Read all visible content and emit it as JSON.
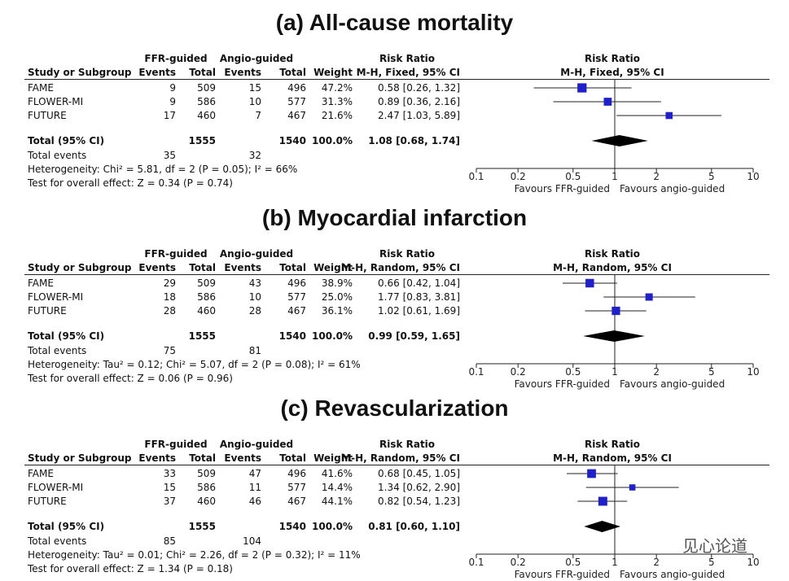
{
  "watermark": "见心论道",
  "axis": {
    "ticks": [
      0.1,
      0.2,
      0.5,
      1,
      2,
      5,
      10
    ],
    "tick_labels": [
      "0.1",
      "0.2",
      "0.5",
      "1",
      "2",
      "5",
      "10"
    ],
    "scale": "log",
    "xlim": [
      0.1,
      10
    ]
  },
  "header": {
    "study": "Study or Subgroup",
    "group1": "FFR-guided",
    "group2": "Angio-guided",
    "events": "Events",
    "total": "Total",
    "weight": "Weight",
    "rr": "Risk Ratio",
    "total_events": "Total events",
    "favours_left": "Favours FFR-guided",
    "favours_right": "Favours angio-guided"
  },
  "panels": [
    {
      "title": "(a) All-cause mortality",
      "method": "M-H, Fixed, 95% CI",
      "studies": [
        {
          "name": "FAME",
          "e1": "9",
          "n1": "509",
          "e2": "15",
          "n2": "496",
          "weight": "47.2%",
          "rr_text": "0.58 [0.26, 1.32]"
        },
        {
          "name": "FLOWER-MI",
          "e1": "9",
          "n1": "586",
          "e2": "10",
          "n2": "577",
          "weight": "31.3%",
          "rr_text": "0.89 [0.36, 2.16]"
        },
        {
          "name": "FUTURE",
          "e1": "17",
          "n1": "460",
          "e2": "7",
          "n2": "467",
          "weight": "21.6%",
          "rr_text": "2.47 [1.03, 5.89]"
        }
      ],
      "total": {
        "label": "Total (95% CI)",
        "n1": "1555",
        "n2": "1540",
        "weight": "100.0%",
        "rr_text": "1.08 [0.68, 1.74]"
      },
      "total_events": {
        "e1": "35",
        "e2": "32"
      },
      "heterogeneity": "Heterogeneity: Chi² = 5.81, df = 2 (P = 0.05); I² = 66%",
      "overall": "Test for overall effect: Z = 0.34 (P = 0.74)"
    },
    {
      "title": "(b) Myocardial infarction",
      "method": "M-H, Random, 95% CI",
      "studies": [
        {
          "name": "FAME",
          "e1": "29",
          "n1": "509",
          "e2": "43",
          "n2": "496",
          "weight": "38.9%",
          "rr_text": "0.66 [0.42, 1.04]"
        },
        {
          "name": "FLOWER-MI",
          "e1": "18",
          "n1": "586",
          "e2": "10",
          "n2": "577",
          "weight": "25.0%",
          "rr_text": "1.77 [0.83, 3.81]"
        },
        {
          "name": "FUTURE",
          "e1": "28",
          "n1": "460",
          "e2": "28",
          "n2": "467",
          "weight": "36.1%",
          "rr_text": "1.02 [0.61, 1.69]"
        }
      ],
      "total": {
        "label": "Total (95% CI)",
        "n1": "1555",
        "n2": "1540",
        "weight": "100.0%",
        "rr_text": "0.99 [0.59, 1.65]"
      },
      "total_events": {
        "e1": "75",
        "e2": "81"
      },
      "heterogeneity": "Heterogeneity: Tau² = 0.12; Chi² = 5.07, df = 2 (P = 0.08); I² = 61%",
      "overall": "Test for overall effect: Z = 0.06 (P = 0.96)"
    },
    {
      "title": "(c) Revascularization",
      "method": "M-H, Random, 95% CI",
      "studies": [
        {
          "name": "FAME",
          "e1": "33",
          "n1": "509",
          "e2": "47",
          "n2": "496",
          "weight": "41.6%",
          "rr_text": "0.68 [0.45, 1.05]"
        },
        {
          "name": "FLOWER-MI",
          "e1": "15",
          "n1": "586",
          "e2": "11",
          "n2": "577",
          "weight": "14.4%",
          "rr_text": "1.34 [0.62, 2.90]"
        },
        {
          "name": "FUTURE",
          "e1": "37",
          "n1": "460",
          "e2": "46",
          "n2": "467",
          "weight": "44.1%",
          "rr_text": "0.82 [0.54, 1.23]"
        }
      ],
      "total": {
        "label": "Total (95% CI)",
        "n1": "1555",
        "n2": "1540",
        "weight": "100.0%",
        "rr_text": "0.81 [0.60, 1.10]"
      },
      "total_events": {
        "e1": "85",
        "e2": "104"
      },
      "heterogeneity": "Heterogeneity: Tau² = 0.01; Chi² = 2.26, df = 2 (P = 0.32); I² = 11%",
      "overall": "Test for overall effect: Z = 1.34 (P = 0.18)"
    }
  ],
  "chart_data": [
    {
      "type": "forest",
      "title": "(a) All-cause mortality",
      "xlabel_left": "Favours FFR-guided",
      "xlabel_right": "Favours angio-guided",
      "xscale": "log",
      "xlim": [
        0.1,
        10
      ],
      "series": [
        {
          "name": "FAME",
          "rr": 0.58,
          "lo": 0.26,
          "hi": 1.32,
          "weight": 47.2
        },
        {
          "name": "FLOWER-MI",
          "rr": 0.89,
          "lo": 0.36,
          "hi": 2.16,
          "weight": 31.3
        },
        {
          "name": "FUTURE",
          "rr": 2.47,
          "lo": 1.03,
          "hi": 5.89,
          "weight": 21.6
        }
      ],
      "pooled": {
        "rr": 1.08,
        "lo": 0.68,
        "hi": 1.74
      }
    },
    {
      "type": "forest",
      "title": "(b) Myocardial infarction",
      "xlabel_left": "Favours FFR-guided",
      "xlabel_right": "Favours angio-guided",
      "xscale": "log",
      "xlim": [
        0.1,
        10
      ],
      "series": [
        {
          "name": "FAME",
          "rr": 0.66,
          "lo": 0.42,
          "hi": 1.04,
          "weight": 38.9
        },
        {
          "name": "FLOWER-MI",
          "rr": 1.77,
          "lo": 0.83,
          "hi": 3.81,
          "weight": 25.0
        },
        {
          "name": "FUTURE",
          "rr": 1.02,
          "lo": 0.61,
          "hi": 1.69,
          "weight": 36.1
        }
      ],
      "pooled": {
        "rr": 0.99,
        "lo": 0.59,
        "hi": 1.65
      }
    },
    {
      "type": "forest",
      "title": "(c) Revascularization",
      "xlabel_left": "Favours FFR-guided",
      "xlabel_right": "Favours angio-guided",
      "xscale": "log",
      "xlim": [
        0.1,
        10
      ],
      "series": [
        {
          "name": "FAME",
          "rr": 0.68,
          "lo": 0.45,
          "hi": 1.05,
          "weight": 41.6
        },
        {
          "name": "FLOWER-MI",
          "rr": 1.34,
          "lo": 0.62,
          "hi": 2.9,
          "weight": 14.4
        },
        {
          "name": "FUTURE",
          "rr": 0.82,
          "lo": 0.54,
          "hi": 1.23,
          "weight": 44.1
        }
      ],
      "pooled": {
        "rr": 0.81,
        "lo": 0.6,
        "hi": 1.1
      }
    }
  ],
  "colors": {
    "marker": "#1f1fcc",
    "diamond": "#000000",
    "line": "#222222"
  }
}
